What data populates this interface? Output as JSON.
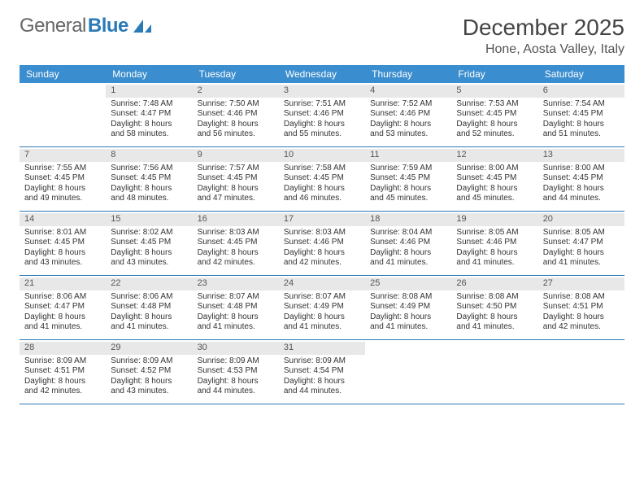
{
  "brand": {
    "part1": "General",
    "part2": "Blue"
  },
  "title": "December 2025",
  "location": "Hone, Aosta Valley, Italy",
  "colors": {
    "header_bg": "#3a8dce",
    "divider": "#2a7ab8",
    "daynum_bg": "#e8e8e8"
  },
  "day_headers": [
    "Sunday",
    "Monday",
    "Tuesday",
    "Wednesday",
    "Thursday",
    "Friday",
    "Saturday"
  ],
  "weeks": [
    [
      {
        "n": "",
        "sr": "",
        "ss": "",
        "dl": ""
      },
      {
        "n": "1",
        "sr": "Sunrise: 7:48 AM",
        "ss": "Sunset: 4:47 PM",
        "dl": "Daylight: 8 hours and 58 minutes."
      },
      {
        "n": "2",
        "sr": "Sunrise: 7:50 AM",
        "ss": "Sunset: 4:46 PM",
        "dl": "Daylight: 8 hours and 56 minutes."
      },
      {
        "n": "3",
        "sr": "Sunrise: 7:51 AM",
        "ss": "Sunset: 4:46 PM",
        "dl": "Daylight: 8 hours and 55 minutes."
      },
      {
        "n": "4",
        "sr": "Sunrise: 7:52 AM",
        "ss": "Sunset: 4:46 PM",
        "dl": "Daylight: 8 hours and 53 minutes."
      },
      {
        "n": "5",
        "sr": "Sunrise: 7:53 AM",
        "ss": "Sunset: 4:45 PM",
        "dl": "Daylight: 8 hours and 52 minutes."
      },
      {
        "n": "6",
        "sr": "Sunrise: 7:54 AM",
        "ss": "Sunset: 4:45 PM",
        "dl": "Daylight: 8 hours and 51 minutes."
      }
    ],
    [
      {
        "n": "7",
        "sr": "Sunrise: 7:55 AM",
        "ss": "Sunset: 4:45 PM",
        "dl": "Daylight: 8 hours and 49 minutes."
      },
      {
        "n": "8",
        "sr": "Sunrise: 7:56 AM",
        "ss": "Sunset: 4:45 PM",
        "dl": "Daylight: 8 hours and 48 minutes."
      },
      {
        "n": "9",
        "sr": "Sunrise: 7:57 AM",
        "ss": "Sunset: 4:45 PM",
        "dl": "Daylight: 8 hours and 47 minutes."
      },
      {
        "n": "10",
        "sr": "Sunrise: 7:58 AM",
        "ss": "Sunset: 4:45 PM",
        "dl": "Daylight: 8 hours and 46 minutes."
      },
      {
        "n": "11",
        "sr": "Sunrise: 7:59 AM",
        "ss": "Sunset: 4:45 PM",
        "dl": "Daylight: 8 hours and 45 minutes."
      },
      {
        "n": "12",
        "sr": "Sunrise: 8:00 AM",
        "ss": "Sunset: 4:45 PM",
        "dl": "Daylight: 8 hours and 45 minutes."
      },
      {
        "n": "13",
        "sr": "Sunrise: 8:00 AM",
        "ss": "Sunset: 4:45 PM",
        "dl": "Daylight: 8 hours and 44 minutes."
      }
    ],
    [
      {
        "n": "14",
        "sr": "Sunrise: 8:01 AM",
        "ss": "Sunset: 4:45 PM",
        "dl": "Daylight: 8 hours and 43 minutes."
      },
      {
        "n": "15",
        "sr": "Sunrise: 8:02 AM",
        "ss": "Sunset: 4:45 PM",
        "dl": "Daylight: 8 hours and 43 minutes."
      },
      {
        "n": "16",
        "sr": "Sunrise: 8:03 AM",
        "ss": "Sunset: 4:45 PM",
        "dl": "Daylight: 8 hours and 42 minutes."
      },
      {
        "n": "17",
        "sr": "Sunrise: 8:03 AM",
        "ss": "Sunset: 4:46 PM",
        "dl": "Daylight: 8 hours and 42 minutes."
      },
      {
        "n": "18",
        "sr": "Sunrise: 8:04 AM",
        "ss": "Sunset: 4:46 PM",
        "dl": "Daylight: 8 hours and 41 minutes."
      },
      {
        "n": "19",
        "sr": "Sunrise: 8:05 AM",
        "ss": "Sunset: 4:46 PM",
        "dl": "Daylight: 8 hours and 41 minutes."
      },
      {
        "n": "20",
        "sr": "Sunrise: 8:05 AM",
        "ss": "Sunset: 4:47 PM",
        "dl": "Daylight: 8 hours and 41 minutes."
      }
    ],
    [
      {
        "n": "21",
        "sr": "Sunrise: 8:06 AM",
        "ss": "Sunset: 4:47 PM",
        "dl": "Daylight: 8 hours and 41 minutes."
      },
      {
        "n": "22",
        "sr": "Sunrise: 8:06 AM",
        "ss": "Sunset: 4:48 PM",
        "dl": "Daylight: 8 hours and 41 minutes."
      },
      {
        "n": "23",
        "sr": "Sunrise: 8:07 AM",
        "ss": "Sunset: 4:48 PM",
        "dl": "Daylight: 8 hours and 41 minutes."
      },
      {
        "n": "24",
        "sr": "Sunrise: 8:07 AM",
        "ss": "Sunset: 4:49 PM",
        "dl": "Daylight: 8 hours and 41 minutes."
      },
      {
        "n": "25",
        "sr": "Sunrise: 8:08 AM",
        "ss": "Sunset: 4:49 PM",
        "dl": "Daylight: 8 hours and 41 minutes."
      },
      {
        "n": "26",
        "sr": "Sunrise: 8:08 AM",
        "ss": "Sunset: 4:50 PM",
        "dl": "Daylight: 8 hours and 41 minutes."
      },
      {
        "n": "27",
        "sr": "Sunrise: 8:08 AM",
        "ss": "Sunset: 4:51 PM",
        "dl": "Daylight: 8 hours and 42 minutes."
      }
    ],
    [
      {
        "n": "28",
        "sr": "Sunrise: 8:09 AM",
        "ss": "Sunset: 4:51 PM",
        "dl": "Daylight: 8 hours and 42 minutes."
      },
      {
        "n": "29",
        "sr": "Sunrise: 8:09 AM",
        "ss": "Sunset: 4:52 PM",
        "dl": "Daylight: 8 hours and 43 minutes."
      },
      {
        "n": "30",
        "sr": "Sunrise: 8:09 AM",
        "ss": "Sunset: 4:53 PM",
        "dl": "Daylight: 8 hours and 44 minutes."
      },
      {
        "n": "31",
        "sr": "Sunrise: 8:09 AM",
        "ss": "Sunset: 4:54 PM",
        "dl": "Daylight: 8 hours and 44 minutes."
      },
      {
        "n": "",
        "sr": "",
        "ss": "",
        "dl": ""
      },
      {
        "n": "",
        "sr": "",
        "ss": "",
        "dl": ""
      },
      {
        "n": "",
        "sr": "",
        "ss": "",
        "dl": ""
      }
    ]
  ]
}
